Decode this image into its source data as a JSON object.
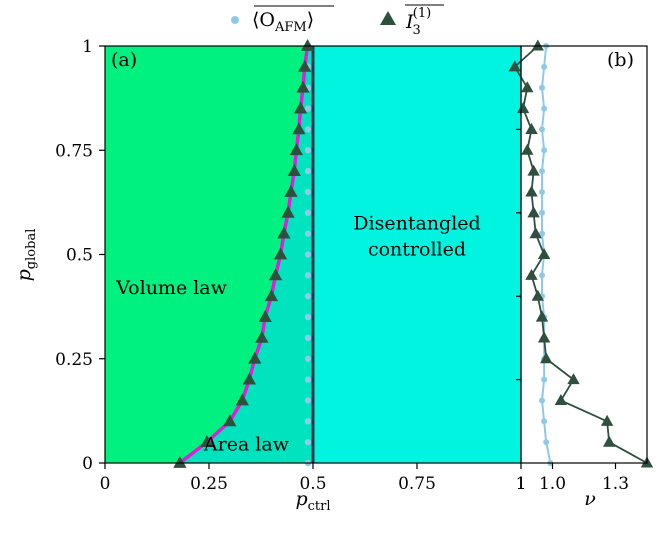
{
  "legend": {
    "placement": "top-center",
    "items": [
      {
        "name": "O_AFM",
        "label_main": "⟨O",
        "label_sub": "AFM",
        "label_close": "⟩",
        "color": "#8ecae6",
        "marker": "circle"
      },
      {
        "name": "I3",
        "label_main": "I",
        "label_sub": "3",
        "label_sup": "(1)",
        "color": "#2f4f3f",
        "marker": "triangle"
      }
    ]
  },
  "colors": {
    "volume_law": "#00f17f",
    "area_law": "#00e3bf",
    "disentangled": "#00f4e0",
    "boundary_line": "#e01ed8",
    "triangle_series": "#2f4f3f",
    "circle_series": "#8ecae6",
    "vertical_line": "#1f3b4d"
  },
  "chart_data": [
    {
      "panel": "(a)",
      "type": "line",
      "xlabel_main": "p",
      "xlabel_sub": "ctrl",
      "ylabel_main": "p",
      "ylabel_sub": "global",
      "xlim": [
        0,
        1
      ],
      "ylim": [
        0,
        1
      ],
      "xticks": [
        0,
        0.25,
        0.5,
        0.75,
        1
      ],
      "xtick_labels": [
        "0",
        "0.25",
        "0.5",
        "0.75",
        "1"
      ],
      "yticks": [
        0,
        0.25,
        0.5,
        0.75,
        1
      ],
      "ytick_labels": [
        "0",
        "0.25",
        "0.5",
        "0.75",
        "1"
      ],
      "grid": false,
      "regions": [
        {
          "name": "volume-law",
          "label": "Volume law",
          "label_x": 0.16,
          "label_y": 0.42
        },
        {
          "name": "area-law",
          "label": "Area law",
          "label_x": 0.34,
          "label_y": 0.03
        },
        {
          "name": "disentangled",
          "label_line1": "Disentangled",
          "label_line2": "controlled",
          "label_x": 0.75,
          "label_y": 0.56
        }
      ],
      "vertical_line_x": 0.5,
      "series": [
        {
          "name": "I3",
          "marker": "triangle",
          "points": [
            [
              0.18,
              0.0
            ],
            [
              0.245,
              0.05
            ],
            [
              0.3,
              0.1
            ],
            [
              0.33,
              0.15
            ],
            [
              0.347,
              0.2
            ],
            [
              0.36,
              0.25
            ],
            [
              0.377,
              0.3
            ],
            [
              0.385,
              0.35
            ],
            [
              0.4,
              0.4
            ],
            [
              0.41,
              0.45
            ],
            [
              0.422,
              0.5
            ],
            [
              0.43,
              0.55
            ],
            [
              0.44,
              0.6
            ],
            [
              0.447,
              0.65
            ],
            [
              0.455,
              0.7
            ],
            [
              0.46,
              0.75
            ],
            [
              0.466,
              0.8
            ],
            [
              0.47,
              0.85
            ],
            [
              0.476,
              0.9
            ],
            [
              0.48,
              0.95
            ],
            [
              0.487,
              1.0
            ]
          ]
        },
        {
          "name": "O_AFM",
          "marker": "circle",
          "points": [
            [
              0.5,
              0.0
            ],
            [
              0.5,
              0.05
            ],
            [
              0.5,
              0.1
            ],
            [
              0.5,
              0.15
            ],
            [
              0.5,
              0.2
            ],
            [
              0.5,
              0.25
            ],
            [
              0.5,
              0.3
            ],
            [
              0.5,
              0.35
            ],
            [
              0.5,
              0.4
            ],
            [
              0.5,
              0.45
            ],
            [
              0.5,
              0.5
            ],
            [
              0.5,
              0.55
            ],
            [
              0.5,
              0.6
            ],
            [
              0.5,
              0.65
            ],
            [
              0.5,
              0.7
            ],
            [
              0.5,
              0.75
            ],
            [
              0.5,
              0.8
            ],
            [
              0.5,
              0.85
            ],
            [
              0.5,
              0.9
            ],
            [
              0.5,
              0.95
            ],
            [
              0.5,
              1.0
            ]
          ]
        }
      ]
    },
    {
      "panel": "(b)",
      "type": "line",
      "xlabel": "ν",
      "xlim": [
        0.85,
        1.45
      ],
      "ylim": [
        0,
        1
      ],
      "xticks": [
        1.0,
        1.3
      ],
      "xtick_labels": [
        "1.0",
        "1.3"
      ],
      "left_edge_label": "1",
      "grid": false,
      "series": [
        {
          "name": "I3",
          "marker": "triangle",
          "points": [
            [
              1.45,
              0.0
            ],
            [
              1.27,
              0.05
            ],
            [
              1.26,
              0.1
            ],
            [
              1.04,
              0.15
            ],
            [
              1.1,
              0.2
            ],
            [
              0.97,
              0.25
            ],
            [
              0.96,
              0.3
            ],
            [
              0.95,
              0.35
            ],
            [
              0.93,
              0.4
            ],
            [
              0.9,
              0.45
            ],
            [
              0.96,
              0.5
            ],
            [
              0.92,
              0.55
            ],
            [
              0.91,
              0.6
            ],
            [
              0.9,
              0.65
            ],
            [
              0.91,
              0.7
            ],
            [
              0.88,
              0.75
            ],
            [
              0.9,
              0.8
            ],
            [
              0.86,
              0.85
            ],
            [
              0.88,
              0.9
            ],
            [
              0.82,
              0.95
            ],
            [
              0.93,
              1.0
            ]
          ]
        },
        {
          "name": "O_AFM",
          "marker": "circle",
          "points": [
            [
              0.99,
              0.0
            ],
            [
              0.97,
              0.05
            ],
            [
              0.96,
              0.1
            ],
            [
              0.95,
              0.15
            ],
            [
              0.96,
              0.2
            ],
            [
              0.96,
              0.25
            ],
            [
              0.96,
              0.3
            ],
            [
              0.96,
              0.35
            ],
            [
              0.95,
              0.4
            ],
            [
              0.95,
              0.45
            ],
            [
              0.96,
              0.5
            ],
            [
              0.95,
              0.55
            ],
            [
              0.95,
              0.6
            ],
            [
              0.95,
              0.65
            ],
            [
              0.95,
              0.7
            ],
            [
              0.96,
              0.75
            ],
            [
              0.95,
              0.8
            ],
            [
              0.96,
              0.85
            ],
            [
              0.95,
              0.9
            ],
            [
              0.96,
              0.95
            ],
            [
              0.97,
              1.0
            ]
          ]
        }
      ]
    }
  ]
}
